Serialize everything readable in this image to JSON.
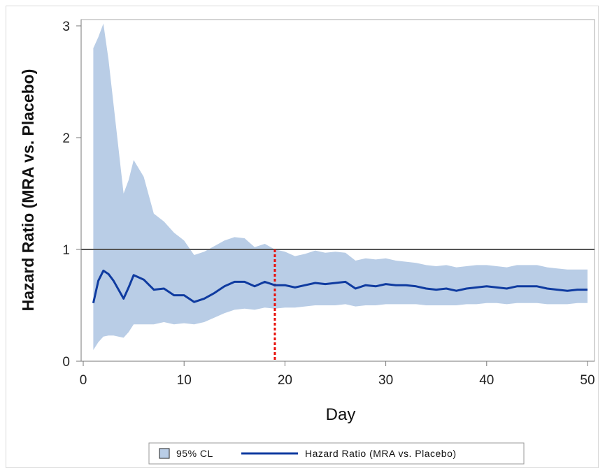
{
  "chart_data": {
    "type": "line",
    "xlabel": "Day",
    "ylabel": "Hazard Ratio (MRA vs. Placebo)",
    "xlim": [
      0,
      50
    ],
    "ylim": [
      0,
      3
    ],
    "x_ticks": [
      "0",
      "10",
      "20",
      "30",
      "40",
      "50"
    ],
    "y_ticks": [
      "0",
      "1",
      "2",
      "3"
    ],
    "reference_line_y": 1,
    "vertical_marker_x": 19,
    "grid": false,
    "legend_position": "bottom",
    "legend": {
      "band_label": "95% CL",
      "line_label": "Hazard Ratio (MRA vs. Placebo)"
    },
    "series": [
      {
        "name": "Hazard Ratio (MRA vs. Placebo)",
        "x": [
          1,
          1.5,
          2,
          2.5,
          3,
          4,
          4.5,
          5,
          6,
          7,
          8,
          9,
          10,
          11,
          12,
          13,
          14,
          15,
          16,
          17,
          18,
          19,
          20,
          21,
          22,
          23,
          24,
          25,
          26,
          27,
          28,
          29,
          30,
          31,
          32,
          33,
          34,
          35,
          36,
          37,
          38,
          39,
          40,
          41,
          42,
          43,
          44,
          45,
          46,
          47,
          48,
          49,
          50
        ],
        "y": [
          0.52,
          0.72,
          0.81,
          0.78,
          0.72,
          0.56,
          0.66,
          0.77,
          0.73,
          0.64,
          0.65,
          0.59,
          0.59,
          0.53,
          0.56,
          0.61,
          0.67,
          0.71,
          0.71,
          0.67,
          0.71,
          0.68,
          0.68,
          0.66,
          0.68,
          0.7,
          0.69,
          0.7,
          0.71,
          0.65,
          0.68,
          0.67,
          0.69,
          0.68,
          0.68,
          0.67,
          0.65,
          0.64,
          0.65,
          0.63,
          0.65,
          0.66,
          0.67,
          0.66,
          0.65,
          0.67,
          0.67,
          0.67,
          0.65,
          0.64,
          0.63,
          0.64,
          0.64
        ],
        "lower": [
          0.1,
          0.17,
          0.22,
          0.23,
          0.23,
          0.21,
          0.26,
          0.33,
          0.33,
          0.33,
          0.35,
          0.33,
          0.34,
          0.33,
          0.35,
          0.39,
          0.43,
          0.46,
          0.47,
          0.46,
          0.48,
          0.47,
          0.48,
          0.48,
          0.49,
          0.5,
          0.5,
          0.5,
          0.51,
          0.49,
          0.5,
          0.5,
          0.51,
          0.51,
          0.51,
          0.51,
          0.5,
          0.5,
          0.5,
          0.5,
          0.51,
          0.51,
          0.52,
          0.52,
          0.51,
          0.52,
          0.52,
          0.52,
          0.51,
          0.51,
          0.51,
          0.52,
          0.52
        ],
        "upper": [
          2.8,
          2.9,
          3.02,
          2.7,
          2.3,
          1.5,
          1.62,
          1.8,
          1.65,
          1.32,
          1.25,
          1.15,
          1.08,
          0.95,
          0.98,
          1.03,
          1.08,
          1.11,
          1.1,
          1.02,
          1.05,
          1.0,
          0.98,
          0.94,
          0.96,
          0.99,
          0.97,
          0.98,
          0.97,
          0.9,
          0.92,
          0.91,
          0.92,
          0.9,
          0.89,
          0.88,
          0.86,
          0.85,
          0.86,
          0.84,
          0.85,
          0.86,
          0.86,
          0.85,
          0.84,
          0.86,
          0.86,
          0.86,
          0.84,
          0.83,
          0.82,
          0.82,
          0.82
        ]
      }
    ],
    "colors": {
      "band": "#b9cde6",
      "line": "#0f3ba0",
      "reference": "#555555",
      "marker": "#e8120c",
      "axis": "#777777"
    }
  }
}
